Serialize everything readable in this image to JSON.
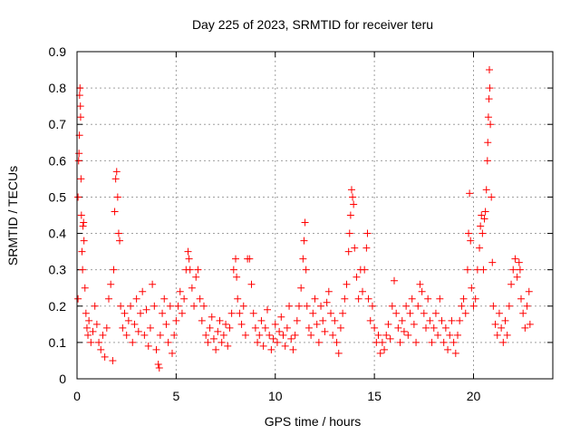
{
  "chart_data": {
    "type": "scatter",
    "title": "Day 225 of 2023, SRMTID for receiver teru",
    "xlabel": "GPS time / hours",
    "ylabel": "SRMTID / TECUs",
    "xlim": [
      0,
      24
    ],
    "ylim": [
      0,
      0.9
    ],
    "x_ticks": [
      0,
      5,
      10,
      15,
      20
    ],
    "x_tick_labels": [
      "0",
      "5",
      "10",
      "15",
      "20"
    ],
    "y_ticks": [
      0,
      0.1,
      0.2,
      0.3,
      0.4,
      0.5,
      0.6,
      0.7,
      0.8,
      0.9
    ],
    "y_tick_labels": [
      "0",
      "0.1",
      "0.2",
      "0.3",
      "0.4",
      "0.5",
      "0.6",
      "0.7",
      "0.8",
      "0.9"
    ],
    "grid": true,
    "marker": "+",
    "color": "#ff0000",
    "series": [
      {
        "name": "SRMTID",
        "points": [
          [
            0.05,
            0.22
          ],
          [
            0.05,
            0.5
          ],
          [
            0.08,
            0.6
          ],
          [
            0.1,
            0.62
          ],
          [
            0.12,
            0.67
          ],
          [
            0.13,
            0.78
          ],
          [
            0.15,
            0.8
          ],
          [
            0.17,
            0.75
          ],
          [
            0.18,
            0.72
          ],
          [
            0.2,
            0.55
          ],
          [
            0.22,
            0.45
          ],
          [
            0.25,
            0.35
          ],
          [
            0.28,
            0.3
          ],
          [
            0.3,
            0.42
          ],
          [
            0.33,
            0.43
          ],
          [
            0.35,
            0.38
          ],
          [
            0.4,
            0.25
          ],
          [
            0.45,
            0.18
          ],
          [
            0.5,
            0.14
          ],
          [
            0.55,
            0.12
          ],
          [
            0.6,
            0.16
          ],
          [
            0.7,
            0.1
          ],
          [
            0.8,
            0.13
          ],
          [
            0.9,
            0.2
          ],
          [
            1.0,
            0.15
          ],
          [
            1.1,
            0.1
          ],
          [
            1.2,
            0.08
          ],
          [
            1.3,
            0.12
          ],
          [
            1.4,
            0.06
          ],
          [
            1.5,
            0.14
          ],
          [
            1.6,
            0.22
          ],
          [
            1.7,
            0.26
          ],
          [
            1.8,
            0.05
          ],
          [
            1.85,
            0.3
          ],
          [
            1.9,
            0.46
          ],
          [
            1.95,
            0.55
          ],
          [
            2.0,
            0.57
          ],
          [
            2.05,
            0.5
          ],
          [
            2.1,
            0.4
          ],
          [
            2.15,
            0.38
          ],
          [
            2.2,
            0.2
          ],
          [
            2.3,
            0.14
          ],
          [
            2.4,
            0.18
          ],
          [
            2.5,
            0.12
          ],
          [
            2.6,
            0.16
          ],
          [
            2.7,
            0.2
          ],
          [
            2.8,
            0.1
          ],
          [
            2.9,
            0.15
          ],
          [
            3.0,
            0.22
          ],
          [
            3.1,
            0.13
          ],
          [
            3.2,
            0.18
          ],
          [
            3.3,
            0.24
          ],
          [
            3.4,
            0.12
          ],
          [
            3.5,
            0.19
          ],
          [
            3.6,
            0.09
          ],
          [
            3.7,
            0.14
          ],
          [
            3.8,
            0.26
          ],
          [
            3.9,
            0.2
          ],
          [
            4.0,
            0.08
          ],
          [
            4.1,
            0.04
          ],
          [
            4.15,
            0.03
          ],
          [
            4.2,
            0.12
          ],
          [
            4.3,
            0.18
          ],
          [
            4.4,
            0.22
          ],
          [
            4.5,
            0.15
          ],
          [
            4.6,
            0.1
          ],
          [
            4.7,
            0.2
          ],
          [
            4.8,
            0.07
          ],
          [
            4.9,
            0.12
          ],
          [
            5.0,
            0.16
          ],
          [
            5.1,
            0.2
          ],
          [
            5.2,
            0.24
          ],
          [
            5.3,
            0.18
          ],
          [
            5.4,
            0.22
          ],
          [
            5.5,
            0.3
          ],
          [
            5.6,
            0.35
          ],
          [
            5.65,
            0.33
          ],
          [
            5.7,
            0.3
          ],
          [
            5.8,
            0.25
          ],
          [
            5.9,
            0.2
          ],
          [
            6.0,
            0.28
          ],
          [
            6.1,
            0.3
          ],
          [
            6.2,
            0.22
          ],
          [
            6.3,
            0.16
          ],
          [
            6.4,
            0.2
          ],
          [
            6.5,
            0.12
          ],
          [
            6.6,
            0.1
          ],
          [
            6.7,
            0.14
          ],
          [
            6.8,
            0.17
          ],
          [
            6.9,
            0.11
          ],
          [
            7.0,
            0.08
          ],
          [
            7.1,
            0.13
          ],
          [
            7.2,
            0.16
          ],
          [
            7.3,
            0.1
          ],
          [
            7.4,
            0.12
          ],
          [
            7.5,
            0.15
          ],
          [
            7.6,
            0.09
          ],
          [
            7.7,
            0.14
          ],
          [
            7.8,
            0.18
          ],
          [
            7.9,
            0.3
          ],
          [
            8.0,
            0.33
          ],
          [
            8.05,
            0.28
          ],
          [
            8.1,
            0.22
          ],
          [
            8.2,
            0.18
          ],
          [
            8.3,
            0.15
          ],
          [
            8.4,
            0.2
          ],
          [
            8.5,
            0.12
          ],
          [
            8.6,
            0.33
          ],
          [
            8.7,
            0.33
          ],
          [
            8.8,
            0.26
          ],
          [
            8.9,
            0.18
          ],
          [
            9.0,
            0.14
          ],
          [
            9.1,
            0.1
          ],
          [
            9.2,
            0.12
          ],
          [
            9.3,
            0.16
          ],
          [
            9.4,
            0.09
          ],
          [
            9.5,
            0.14
          ],
          [
            9.6,
            0.19
          ],
          [
            9.7,
            0.12
          ],
          [
            9.8,
            0.08
          ],
          [
            9.9,
            0.11
          ],
          [
            10.0,
            0.15
          ],
          [
            10.1,
            0.1
          ],
          [
            10.2,
            0.13
          ],
          [
            10.3,
            0.17
          ],
          [
            10.4,
            0.12
          ],
          [
            10.5,
            0.09
          ],
          [
            10.6,
            0.14
          ],
          [
            10.7,
            0.2
          ],
          [
            10.8,
            0.11
          ],
          [
            10.9,
            0.08
          ],
          [
            11.0,
            0.12
          ],
          [
            11.1,
            0.16
          ],
          [
            11.2,
            0.2
          ],
          [
            11.3,
            0.25
          ],
          [
            11.4,
            0.33
          ],
          [
            11.45,
            0.38
          ],
          [
            11.5,
            0.43
          ],
          [
            11.55,
            0.3
          ],
          [
            11.6,
            0.2
          ],
          [
            11.7,
            0.14
          ],
          [
            11.8,
            0.12
          ],
          [
            11.9,
            0.18
          ],
          [
            12.0,
            0.22
          ],
          [
            12.1,
            0.15
          ],
          [
            12.2,
            0.1
          ],
          [
            12.3,
            0.2
          ],
          [
            12.4,
            0.16
          ],
          [
            12.5,
            0.13
          ],
          [
            12.6,
            0.21
          ],
          [
            12.7,
            0.24
          ],
          [
            12.8,
            0.18
          ],
          [
            12.9,
            0.12
          ],
          [
            13.0,
            0.16
          ],
          [
            13.1,
            0.1
          ],
          [
            13.2,
            0.07
          ],
          [
            13.3,
            0.14
          ],
          [
            13.4,
            0.18
          ],
          [
            13.5,
            0.22
          ],
          [
            13.6,
            0.26
          ],
          [
            13.7,
            0.35
          ],
          [
            13.75,
            0.4
          ],
          [
            13.8,
            0.45
          ],
          [
            13.85,
            0.52
          ],
          [
            13.9,
            0.5
          ],
          [
            13.95,
            0.48
          ],
          [
            14.0,
            0.36
          ],
          [
            14.1,
            0.28
          ],
          [
            14.2,
            0.22
          ],
          [
            14.3,
            0.3
          ],
          [
            14.4,
            0.24
          ],
          [
            14.5,
            0.3
          ],
          [
            14.6,
            0.36
          ],
          [
            14.65,
            0.4
          ],
          [
            14.7,
            0.22
          ],
          [
            14.8,
            0.16
          ],
          [
            14.9,
            0.2
          ],
          [
            15.0,
            0.14
          ],
          [
            15.1,
            0.1
          ],
          [
            15.2,
            0.12
          ],
          [
            15.3,
            0.07
          ],
          [
            15.4,
            0.1
          ],
          [
            15.5,
            0.08
          ],
          [
            15.6,
            0.12
          ],
          [
            15.7,
            0.15
          ],
          [
            15.8,
            0.11
          ],
          [
            15.9,
            0.2
          ],
          [
            16.0,
            0.27
          ],
          [
            16.1,
            0.18
          ],
          [
            16.2,
            0.14
          ],
          [
            16.3,
            0.1
          ],
          [
            16.4,
            0.16
          ],
          [
            16.5,
            0.13
          ],
          [
            16.6,
            0.2
          ],
          [
            16.7,
            0.12
          ],
          [
            16.8,
            0.18
          ],
          [
            16.9,
            0.22
          ],
          [
            17.0,
            0.15
          ],
          [
            17.1,
            0.1
          ],
          [
            17.2,
            0.2
          ],
          [
            17.3,
            0.26
          ],
          [
            17.4,
            0.24
          ],
          [
            17.5,
            0.18
          ],
          [
            17.6,
            0.14
          ],
          [
            17.7,
            0.22
          ],
          [
            17.8,
            0.16
          ],
          [
            17.9,
            0.1
          ],
          [
            18.0,
            0.14
          ],
          [
            18.1,
            0.18
          ],
          [
            18.2,
            0.12
          ],
          [
            18.3,
            0.22
          ],
          [
            18.4,
            0.16
          ],
          [
            18.5,
            0.1
          ],
          [
            18.6,
            0.14
          ],
          [
            18.7,
            0.08
          ],
          [
            18.8,
            0.12
          ],
          [
            18.9,
            0.16
          ],
          [
            19.0,
            0.1
          ],
          [
            19.1,
            0.07
          ],
          [
            19.2,
            0.12
          ],
          [
            19.3,
            0.16
          ],
          [
            19.4,
            0.2
          ],
          [
            19.5,
            0.22
          ],
          [
            19.6,
            0.18
          ],
          [
            19.7,
            0.3
          ],
          [
            19.75,
            0.4
          ],
          [
            19.8,
            0.51
          ],
          [
            19.85,
            0.38
          ],
          [
            19.9,
            0.25
          ],
          [
            20.0,
            0.2
          ],
          [
            20.1,
            0.22
          ],
          [
            20.2,
            0.3
          ],
          [
            20.3,
            0.36
          ],
          [
            20.35,
            0.42
          ],
          [
            20.4,
            0.45
          ],
          [
            20.45,
            0.4
          ],
          [
            20.5,
            0.3
          ],
          [
            20.55,
            0.44
          ],
          [
            20.6,
            0.46
          ],
          [
            20.65,
            0.52
          ],
          [
            20.7,
            0.6
          ],
          [
            20.72,
            0.65
          ],
          [
            20.75,
            0.72
          ],
          [
            20.78,
            0.77
          ],
          [
            20.8,
            0.85
          ],
          [
            20.82,
            0.8
          ],
          [
            20.85,
            0.7
          ],
          [
            20.9,
            0.5
          ],
          [
            20.95,
            0.32
          ],
          [
            21.0,
            0.2
          ],
          [
            21.1,
            0.15
          ],
          [
            21.2,
            0.12
          ],
          [
            21.3,
            0.18
          ],
          [
            21.4,
            0.14
          ],
          [
            21.5,
            0.1
          ],
          [
            21.6,
            0.16
          ],
          [
            21.7,
            0.12
          ],
          [
            21.8,
            0.2
          ],
          [
            21.9,
            0.26
          ],
          [
            22.0,
            0.3
          ],
          [
            22.1,
            0.33
          ],
          [
            22.2,
            0.28
          ],
          [
            22.3,
            0.32
          ],
          [
            22.35,
            0.3
          ],
          [
            22.4,
            0.22
          ],
          [
            22.5,
            0.18
          ],
          [
            22.6,
            0.14
          ],
          [
            22.7,
            0.2
          ],
          [
            22.8,
            0.24
          ],
          [
            22.85,
            0.15
          ]
        ]
      }
    ]
  }
}
